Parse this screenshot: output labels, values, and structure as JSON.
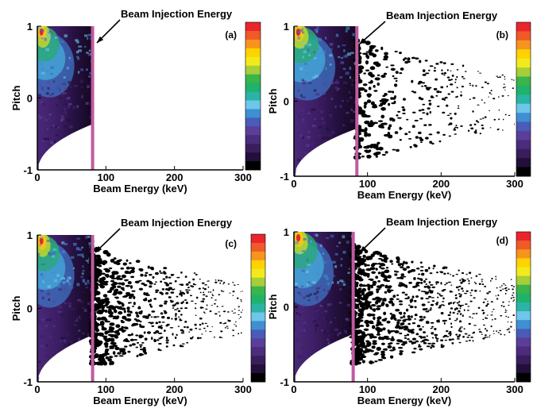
{
  "figure": {
    "annotation_text": "Beam Injection Energy",
    "colorbar_colors": [
      "#e8262b",
      "#f05a28",
      "#f7941d",
      "#ffd200",
      "#f2ea1d",
      "#a6ce39",
      "#39b54a",
      "#1fb26b",
      "#2bb3a3",
      "#6ec6ea",
      "#3f8fd2",
      "#4a5bb8",
      "#5b3e98",
      "#4b2c7d",
      "#3a1e5c",
      "#220f3b",
      "#000000"
    ]
  },
  "chart_data": [
    {
      "type": "heatmap",
      "panel_label": "(a)",
      "xlabel": "Beam Energy (keV)",
      "ylabel": "Pitch",
      "xlim": [
        0,
        300
      ],
      "ylim": [
        -1,
        1
      ],
      "xticks": [
        "0",
        "100",
        "200",
        "300"
      ],
      "yticks": [
        "1",
        "0",
        "-1"
      ],
      "injection_energy": 80,
      "max_particle_energy": 80,
      "tail_density": 0
    },
    {
      "type": "heatmap",
      "panel_label": "(b)",
      "xlabel": "Beam Energy (keV)",
      "ylabel": "Pitch",
      "xlim": [
        0,
        300
      ],
      "ylim": [
        -1,
        1
      ],
      "xticks": [
        "0",
        "100",
        "200",
        "300"
      ],
      "yticks": [
        "1",
        "0",
        "-1"
      ],
      "injection_energy": 85,
      "max_particle_energy": 300,
      "tail_density": 0.45
    },
    {
      "type": "heatmap",
      "panel_label": "(c)",
      "xlabel": "Beam Energy (keV)",
      "ylabel": "Pitch",
      "xlim": [
        0,
        300
      ],
      "ylim": [
        -1,
        1
      ],
      "xticks": [
        "0",
        "100",
        "200",
        "300"
      ],
      "yticks": [
        "1",
        "0",
        "-1"
      ],
      "injection_energy": 80,
      "max_particle_energy": 300,
      "tail_density": 0.8
    },
    {
      "type": "heatmap",
      "panel_label": "(d)",
      "xlabel": "Beam Energy (keV)",
      "ylabel": "Pitch",
      "xlim": [
        0,
        300
      ],
      "ylim": [
        -1,
        1
      ],
      "xticks": [
        "0",
        "100",
        "200",
        "300"
      ],
      "yticks": [
        "1",
        "0",
        "-1"
      ],
      "injection_energy": 80,
      "max_particle_energy": 300,
      "tail_density": 1.0
    }
  ]
}
